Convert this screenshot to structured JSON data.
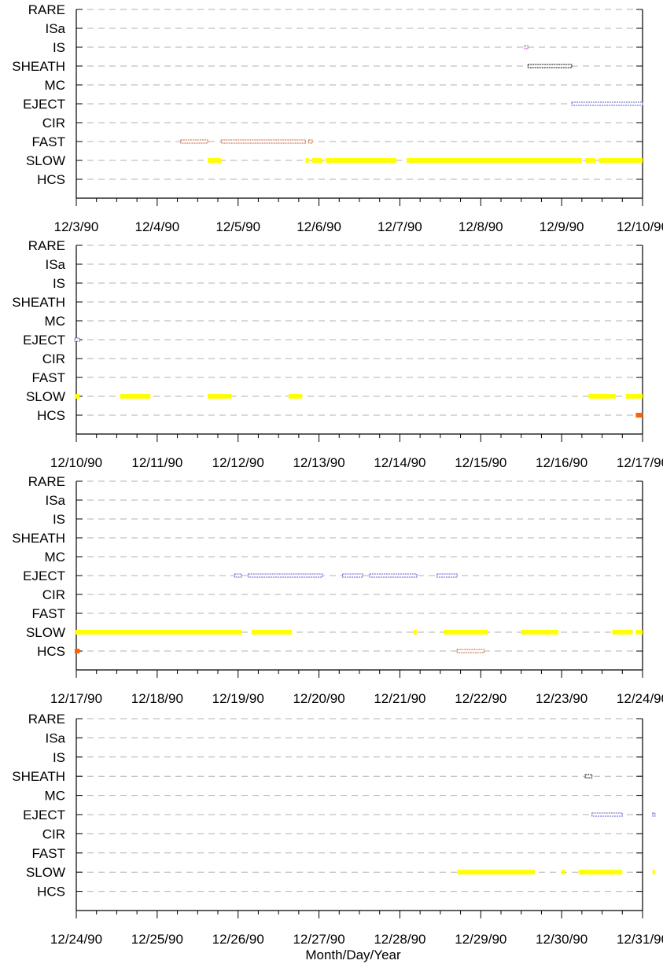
{
  "chart_data": {
    "type": "scatter",
    "xlabel": "Month/Day/Year",
    "ylabel": "",
    "grid": true,
    "categories": [
      "RARE",
      "ISa",
      "IS",
      "SHEATH",
      "MC",
      "EJECT",
      "CIR",
      "FAST",
      "SLOW",
      "HCS"
    ],
    "colors": {
      "SLOW": "#ffff00",
      "FAST": "#c0603a",
      "EJECT": "#5a5ad0",
      "SHEATH": "#000000",
      "IS": "#c040c0",
      "HCS": "#ff6000",
      "axis": "#000000",
      "grid": "#b0b0b0"
    },
    "panels": [
      {
        "tick_labels": [
          "12/3/90",
          "12/4/90",
          "12/5/90",
          "12/6/90",
          "12/7/90",
          "12/8/90",
          "12/9/90",
          "12/10/90"
        ],
        "xlim": [
          "1990-12-03",
          "1990-12-10"
        ],
        "series": [
          {
            "category": "IS",
            "style": "open",
            "intervals": [
              [
                "1990-12-08 13:00",
                "1990-12-08 14:00"
              ]
            ]
          },
          {
            "category": "SHEATH",
            "style": "open",
            "intervals": [
              [
                "1990-12-08 14:00",
                "1990-12-09 03:00"
              ]
            ]
          },
          {
            "category": "EJECT",
            "style": "open",
            "intervals": [
              [
                "1990-12-09 03:00",
                "1990-12-10 00:00"
              ]
            ]
          },
          {
            "category": "FAST",
            "style": "open",
            "intervals": [
              [
                "1990-12-04 07:00",
                "1990-12-04 15:00"
              ],
              [
                "1990-12-04 19:00",
                "1990-12-05 20:00"
              ],
              [
                "1990-12-05 21:00",
                "1990-12-05 22:00"
              ]
            ]
          },
          {
            "category": "SLOW",
            "style": "solid",
            "intervals": [
              [
                "1990-12-04 15:00",
                "1990-12-04 19:00"
              ],
              [
                "1990-12-05 20:00",
                "1990-12-05 21:00"
              ],
              [
                "1990-12-05 22:00",
                "1990-12-06 01:00"
              ],
              [
                "1990-12-06 02:00",
                "1990-12-06 23:00"
              ],
              [
                "1990-12-07 02:00",
                "1990-12-09 06:00"
              ],
              [
                "1990-12-09 07:00",
                "1990-12-09 10:00"
              ],
              [
                "1990-12-09 11:00",
                "1990-12-10 00:00"
              ]
            ]
          }
        ]
      },
      {
        "tick_labels": [
          "12/10/90",
          "12/11/90",
          "12/12/90",
          "12/13/90",
          "12/14/90",
          "12/15/90",
          "12/16/90",
          "12/17/90"
        ],
        "xlim": [
          "1990-12-10",
          "1990-12-17"
        ],
        "series": [
          {
            "category": "EJECT",
            "style": "open",
            "intervals": [
              [
                "1990-12-09 21:00",
                "1990-12-10 01:00"
              ]
            ]
          },
          {
            "category": "SLOW",
            "style": "solid",
            "intervals": [
              [
                "1990-12-09 21:00",
                "1990-12-10 01:00"
              ],
              [
                "1990-12-10 13:00",
                "1990-12-10 22:00"
              ],
              [
                "1990-12-11 15:00",
                "1990-12-11 22:00"
              ],
              [
                "1990-12-12 15:00",
                "1990-12-12 19:00"
              ],
              [
                "1990-12-16 08:00",
                "1990-12-16 16:00"
              ],
              [
                "1990-12-16 19:00",
                "1990-12-17 04:00"
              ]
            ]
          },
          {
            "category": "HCS",
            "style": "solid",
            "intervals": [
              [
                "1990-12-16 22:00",
                "1990-12-17 01:00"
              ]
            ]
          }
        ]
      },
      {
        "tick_labels": [
          "12/17/90",
          "12/18/90",
          "12/19/90",
          "12/20/90",
          "12/21/90",
          "12/22/90",
          "12/23/90",
          "12/24/90"
        ],
        "xlim": [
          "1990-12-17",
          "1990-12-24"
        ],
        "series": [
          {
            "category": "EJECT",
            "style": "open",
            "intervals": [
              [
                "1990-12-18 23:00",
                "1990-12-19 01:00"
              ],
              [
                "1990-12-19 03:00",
                "1990-12-20 01:00"
              ],
              [
                "1990-12-20 07:00",
                "1990-12-20 13:00"
              ],
              [
                "1990-12-20 15:00",
                "1990-12-21 05:00"
              ],
              [
                "1990-12-21 11:00",
                "1990-12-21 17:00"
              ]
            ]
          },
          {
            "category": "SLOW",
            "style": "solid",
            "intervals": [
              [
                "1990-12-16 23:00",
                "1990-12-18 01:00"
              ],
              [
                "1990-12-18 01:00",
                "1990-12-19 01:00"
              ],
              [
                "1990-12-19 04:00",
                "1990-12-19 16:00"
              ],
              [
                "1990-12-21 04:00",
                "1990-12-21 05:00"
              ],
              [
                "1990-12-21 13:00",
                "1990-12-22 02:00"
              ],
              [
                "1990-12-22 12:00",
                "1990-12-22 23:00"
              ],
              [
                "1990-12-23 15:00",
                "1990-12-23 21:00"
              ],
              [
                "1990-12-23 22:00",
                "1990-12-24 00:00"
              ]
            ]
          },
          {
            "category": "HCS",
            "style": "solid",
            "intervals": [
              [
                "1990-12-16 23:00",
                "1990-12-17 01:00"
              ]
            ]
          },
          {
            "category": "HCS",
            "style": "open-orange",
            "intervals": [
              [
                "1990-12-21 17:00",
                "1990-12-22 01:00"
              ]
            ]
          }
        ]
      },
      {
        "tick_labels": [
          "12/24/90",
          "12/25/90",
          "12/26/90",
          "12/27/90",
          "12/28/90",
          "12/29/90",
          "12/30/90",
          "12/31/90"
        ],
        "xlim": [
          "1990-12-24",
          "1990-12-31"
        ],
        "series": [
          {
            "category": "SHEATH",
            "style": "open",
            "intervals": [
              [
                "1990-12-30 07:00",
                "1990-12-30 09:00"
              ]
            ]
          },
          {
            "category": "EJECT",
            "style": "open",
            "intervals": [
              [
                "1990-12-30 09:00",
                "1990-12-30 18:00"
              ],
              [
                "1990-12-31 03:00",
                "1990-12-31 04:00"
              ]
            ]
          },
          {
            "category": "SLOW",
            "style": "solid",
            "intervals": [
              [
                "1990-12-28 17:00",
                "1990-12-29 16:00"
              ],
              [
                "1990-12-30 00:00",
                "1990-12-30 01:00"
              ],
              [
                "1990-12-30 05:00",
                "1990-12-30 18:00"
              ],
              [
                "1990-12-31 03:00",
                "1990-12-31 04:00"
              ]
            ]
          }
        ]
      }
    ]
  }
}
